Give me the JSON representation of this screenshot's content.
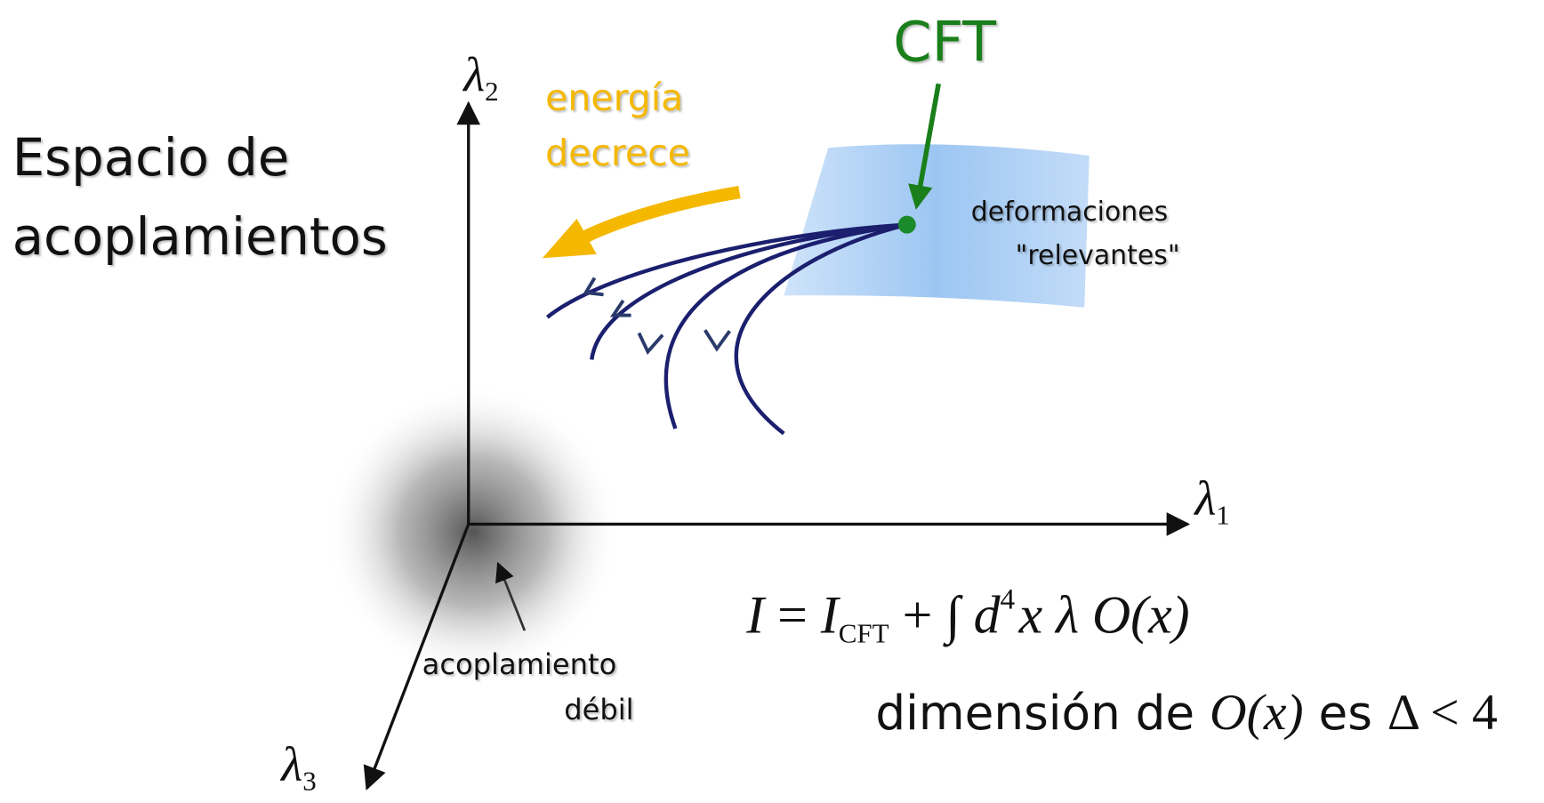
{
  "title": {
    "line1": "Espacio de",
    "line2": "acoplamientos"
  },
  "axes": {
    "y": {
      "symbol": "λ",
      "index": "2"
    },
    "x": {
      "symbol": "λ",
      "index": "1"
    },
    "z": {
      "symbol": "λ",
      "index": "3"
    }
  },
  "flow_label": {
    "line1": "energía",
    "line2": "decrece"
  },
  "fixed_point": "CFT",
  "surface_label": {
    "line1": "deformaciones",
    "line2": "\"relevantes\""
  },
  "origin_label": {
    "line1": "acoplamiento",
    "line2": "débil"
  },
  "equation": {
    "lhs": "I",
    "equals": " = ",
    "base": "I",
    "sub": "CFT",
    "plus": " + ∫ ",
    "d": "d",
    "exp": "4",
    "rest": "x λ O(x)"
  },
  "condition": {
    "text": "dimensión de ",
    "operator": "O(x)",
    "es": " es ",
    "bound": "Δ < 4"
  }
}
